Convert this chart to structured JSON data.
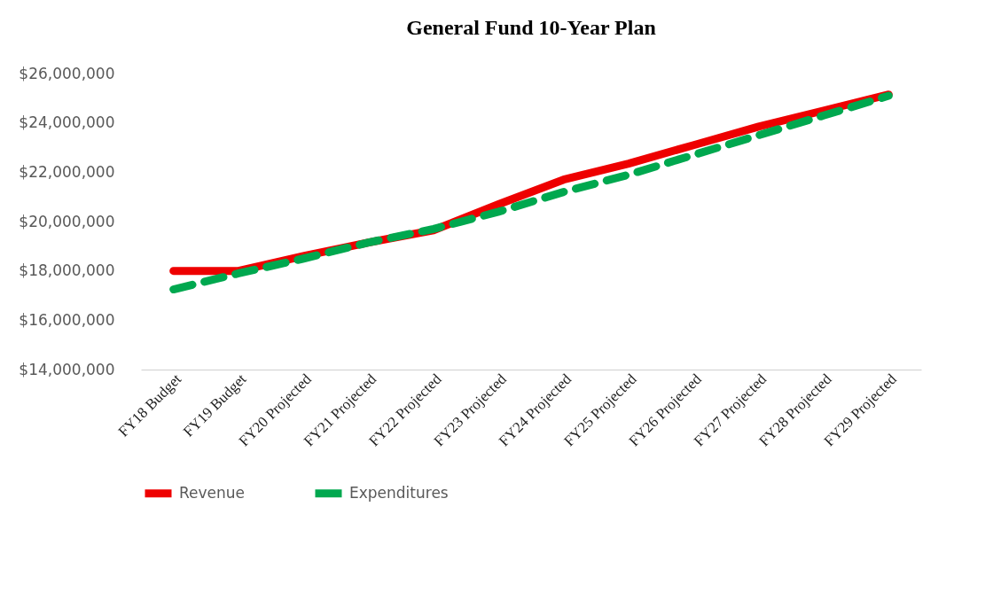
{
  "chart_data": {
    "type": "line",
    "title": "General Fund  10-Year Plan",
    "categories": [
      "FY18 Budget",
      "FY19 Budget",
      "FY20 Projected",
      "FY21 Projected",
      "FY22 Projected",
      "FY23 Projected",
      "FY24 Projected",
      "FY25 Projected",
      "FY26 Projected",
      "FY27 Projected",
      "FY28 Projected",
      "FY29 Projected"
    ],
    "series": [
      {
        "name": "Revenue",
        "color": "#ee0000",
        "line_style": "solid",
        "values": [
          18000000,
          18000000,
          18600000,
          19150000,
          19650000,
          20700000,
          21700000,
          22350000,
          23100000,
          23850000,
          24500000,
          25150000
        ]
      },
      {
        "name": "Expenditures",
        "color": "#00a84f",
        "line_style": "dashed",
        "values": [
          17250000,
          17900000,
          18500000,
          19150000,
          19700000,
          20400000,
          21200000,
          21900000,
          22700000,
          23500000,
          24300000,
          25100000
        ]
      }
    ],
    "ylim": [
      14000000,
      26000000
    ],
    "yticks": [
      {
        "value": 14000000,
        "label": "$14,000,000"
      },
      {
        "value": 16000000,
        "label": "$16,000,000"
      },
      {
        "value": 18000000,
        "label": "$18,000,000"
      },
      {
        "value": 20000000,
        "label": "$20,000,000"
      },
      {
        "value": 22000000,
        "label": "$22,000,000"
      },
      {
        "value": 24000000,
        "label": "$24,000,000"
      },
      {
        "value": 26000000,
        "label": "$26,000,000"
      }
    ],
    "grid": false,
    "legend": "bottom",
    "marker": "none"
  }
}
